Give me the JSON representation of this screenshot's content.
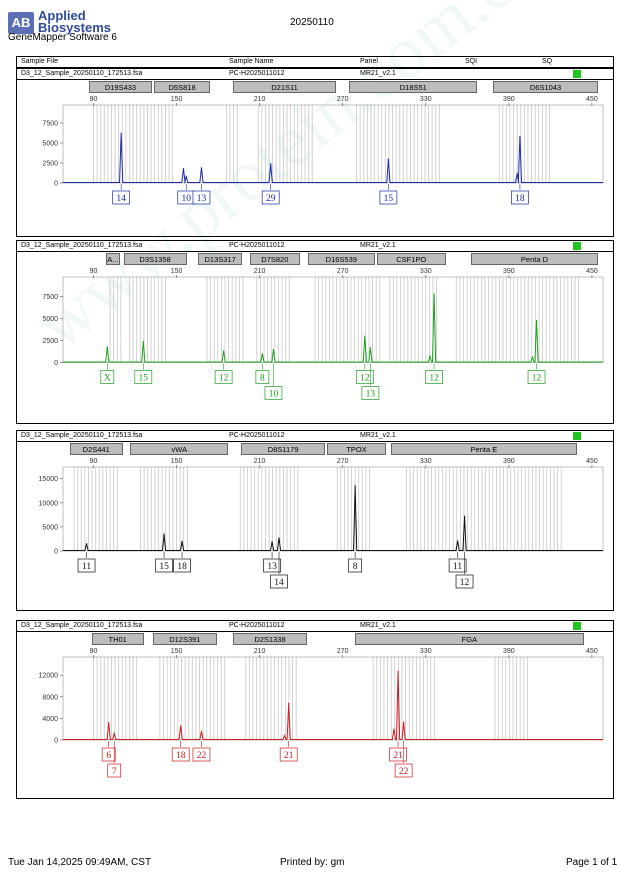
{
  "header": {
    "logo_mark": "AB",
    "logo_line1": "Applied",
    "logo_line2": "Biosystems",
    "app_name": "GeneMapper Software 6",
    "title": "20250110"
  },
  "columns": {
    "sample_file": "Sample File",
    "sample_name": "Sample Name",
    "panel": "Panel",
    "sqi": "SQI",
    "sq": "SQ"
  },
  "footer": {
    "printed_at": "Tue Jan 14,2025 09:49AM, CST",
    "printed_by": "Printed by: gm",
    "page": "Page 1 of 1"
  },
  "colors": {
    "blue": "#1a2aa8",
    "green": "#1da01d",
    "black": "#111111",
    "red": "#d11a1a",
    "status": "#1fc41f"
  },
  "chart_data": [
    {
      "type": "line",
      "dye": "blue",
      "sample_file": "D3_12_Sample_20250110_172513.fsa",
      "sample_name": "PC-H2025011012",
      "panel_name": "MR21_v2.1",
      "x_ticks": [
        90,
        150,
        210,
        270,
        330,
        390,
        450
      ],
      "y_ticks": [
        0,
        2500,
        5000,
        7500
      ],
      "xlim": [
        68,
        458
      ],
      "ylim": [
        0,
        9500
      ],
      "markers": [
        {
          "name": "D19S433",
          "range": [
            86,
            133
          ]
        },
        {
          "name": "D5S818",
          "range": [
            133,
            175
          ]
        },
        {
          "name": "D21S11",
          "range": [
            190,
            266
          ]
        },
        {
          "name": "D18S51",
          "range": [
            274,
            368
          ]
        },
        {
          "name": "D6S1043",
          "range": [
            378,
            455
          ]
        }
      ],
      "bins": [
        [
          90,
          148
        ],
        [
          186,
          196
        ],
        [
          209,
          248
        ],
        [
          280,
          340
        ],
        [
          383,
          422
        ]
      ],
      "peaks": [
        {
          "x": 110,
          "y": 6200,
          "label": "14"
        },
        {
          "x": 155,
          "y": 1800
        },
        {
          "x": 157,
          "y": 800,
          "label": "10"
        },
        {
          "x": 168,
          "y": 1900,
          "label": "13"
        },
        {
          "x": 218,
          "y": 2400,
          "label": "29"
        },
        {
          "x": 303,
          "y": 3000,
          "label": "15"
        },
        {
          "x": 398,
          "y": 5800,
          "label": "18"
        },
        {
          "x": 396,
          "y": 1200
        }
      ],
      "labels_level2": []
    },
    {
      "type": "line",
      "dye": "green",
      "sample_file": "D3_12_Sample_20250110_172513.fsa",
      "sample_name": "PC-H2025011012",
      "panel_name": "MR21_v2.1",
      "x_ticks": [
        90,
        150,
        210,
        270,
        330,
        390,
        450
      ],
      "y_ticks": [
        0,
        2500,
        5000,
        7500
      ],
      "xlim": [
        68,
        458
      ],
      "ylim": [
        0,
        9500
      ],
      "markers": [
        {
          "name": "A...",
          "range": [
            98,
            110
          ]
        },
        {
          "name": "D3S1358",
          "range": [
            111,
            158
          ]
        },
        {
          "name": "D13S317",
          "range": [
            165,
            198
          ]
        },
        {
          "name": "D7S820",
          "range": [
            202,
            240
          ]
        },
        {
          "name": "D16S539",
          "range": [
            244,
            294
          ]
        },
        {
          "name": "CSF1PO",
          "range": [
            294,
            345
          ]
        },
        {
          "name": "Penta D",
          "range": [
            362,
            455
          ]
        }
      ],
      "bins": [
        [
          102,
          110
        ],
        [
          116,
          143
        ],
        [
          172,
          200
        ],
        [
          208,
          232
        ],
        [
          250,
          298
        ],
        [
          304,
          338
        ],
        [
          352,
          442
        ]
      ],
      "peaks": [
        {
          "x": 100,
          "y": 1800,
          "label": "X"
        },
        {
          "x": 126,
          "y": 2400,
          "label": "15"
        },
        {
          "x": 184,
          "y": 1300,
          "label": "12"
        },
        {
          "x": 212,
          "y": 1000,
          "label": "8"
        },
        {
          "x": 220,
          "y": 1500
        },
        {
          "x": 286,
          "y": 3000,
          "label": "12"
        },
        {
          "x": 290,
          "y": 1700
        },
        {
          "x": 336,
          "y": 7800,
          "label": "12"
        },
        {
          "x": 333,
          "y": 700
        },
        {
          "x": 410,
          "y": 4800,
          "label": "12"
        },
        {
          "x": 407,
          "y": 600
        }
      ],
      "labels_level2": [
        {
          "x": 220,
          "label": "10"
        },
        {
          "x": 290,
          "label": "13"
        }
      ]
    },
    {
      "type": "line",
      "dye": "black",
      "sample_file": "D3_12_Sample_20250110_172513.fsa",
      "sample_name": "PC-H2025011012",
      "panel_name": "MR21_v2.1",
      "x_ticks": [
        90,
        150,
        210,
        270,
        330,
        390,
        450
      ],
      "y_ticks": [
        0,
        5000,
        10000,
        15000
      ],
      "xlim": [
        68,
        458
      ],
      "ylim": [
        0,
        17000
      ],
      "markers": [
        {
          "name": "D2S441",
          "range": [
            72,
            112
          ]
        },
        {
          "name": "vWA",
          "range": [
            116,
            188
          ]
        },
        {
          "name": "D8S1179",
          "range": [
            196,
            258
          ]
        },
        {
          "name": "TPOX",
          "range": [
            258,
            302
          ]
        },
        {
          "name": "Penta E",
          "range": [
            304,
            440
          ]
        }
      ],
      "bins": [
        [
          76,
          108
        ],
        [
          124,
          158
        ],
        [
          196,
          238
        ],
        [
          266,
          290
        ],
        [
          316,
          430
        ]
      ],
      "peaks": [
        {
          "x": 85,
          "y": 1500,
          "label": "11"
        },
        {
          "x": 141,
          "y": 3500,
          "label": "15"
        },
        {
          "x": 154,
          "y": 2000,
          "label": "18"
        },
        {
          "x": 219,
          "y": 1900,
          "label": "13"
        },
        {
          "x": 224,
          "y": 2700
        },
        {
          "x": 279,
          "y": 13500,
          "label": "8"
        },
        {
          "x": 353,
          "y": 2100,
          "label": "11"
        },
        {
          "x": 358,
          "y": 7200
        }
      ],
      "labels_level2": [
        {
          "x": 224,
          "label": "14"
        },
        {
          "x": 358,
          "label": "12"
        }
      ]
    },
    {
      "type": "line",
      "dye": "red",
      "sample_file": "D3_12_Sample_20250110_172513.fsa",
      "sample_name": "PC-H2025011012",
      "panel_name": "MR21_v2.1",
      "x_ticks": [
        90,
        150,
        210,
        270,
        330,
        390,
        450
      ],
      "y_ticks": [
        0,
        4000,
        8000,
        12000
      ],
      "xlim": [
        68,
        458
      ],
      "ylim": [
        0,
        15000
      ],
      "markers": [
        {
          "name": "TH01",
          "range": [
            88,
            127
          ]
        },
        {
          "name": "D12S391",
          "range": [
            132,
            180
          ]
        },
        {
          "name": "D2S1338",
          "range": [
            190,
            245
          ]
        },
        {
          "name": "FGA",
          "range": [
            278,
            445
          ]
        }
      ],
      "bins": [
        [
          90,
          122
        ],
        [
          138,
          185
        ],
        [
          200,
          238
        ],
        [
          292,
          338
        ],
        [
          380,
          405
        ]
      ],
      "peaks": [
        {
          "x": 101,
          "y": 3200,
          "label": "6"
        },
        {
          "x": 105,
          "y": 1200
        },
        {
          "x": 153,
          "y": 2600,
          "label": "18"
        },
        {
          "x": 168,
          "y": 1600,
          "label": "22"
        },
        {
          "x": 231,
          "y": 6800,
          "label": "21"
        },
        {
          "x": 228,
          "y": 800
        },
        {
          "x": 310,
          "y": 12700,
          "label": "21"
        },
        {
          "x": 314,
          "y": 3300
        },
        {
          "x": 307,
          "y": 2000
        }
      ],
      "labels_level2": [
        {
          "x": 105,
          "label": "7"
        },
        {
          "x": 314,
          "label": "22"
        }
      ]
    }
  ]
}
